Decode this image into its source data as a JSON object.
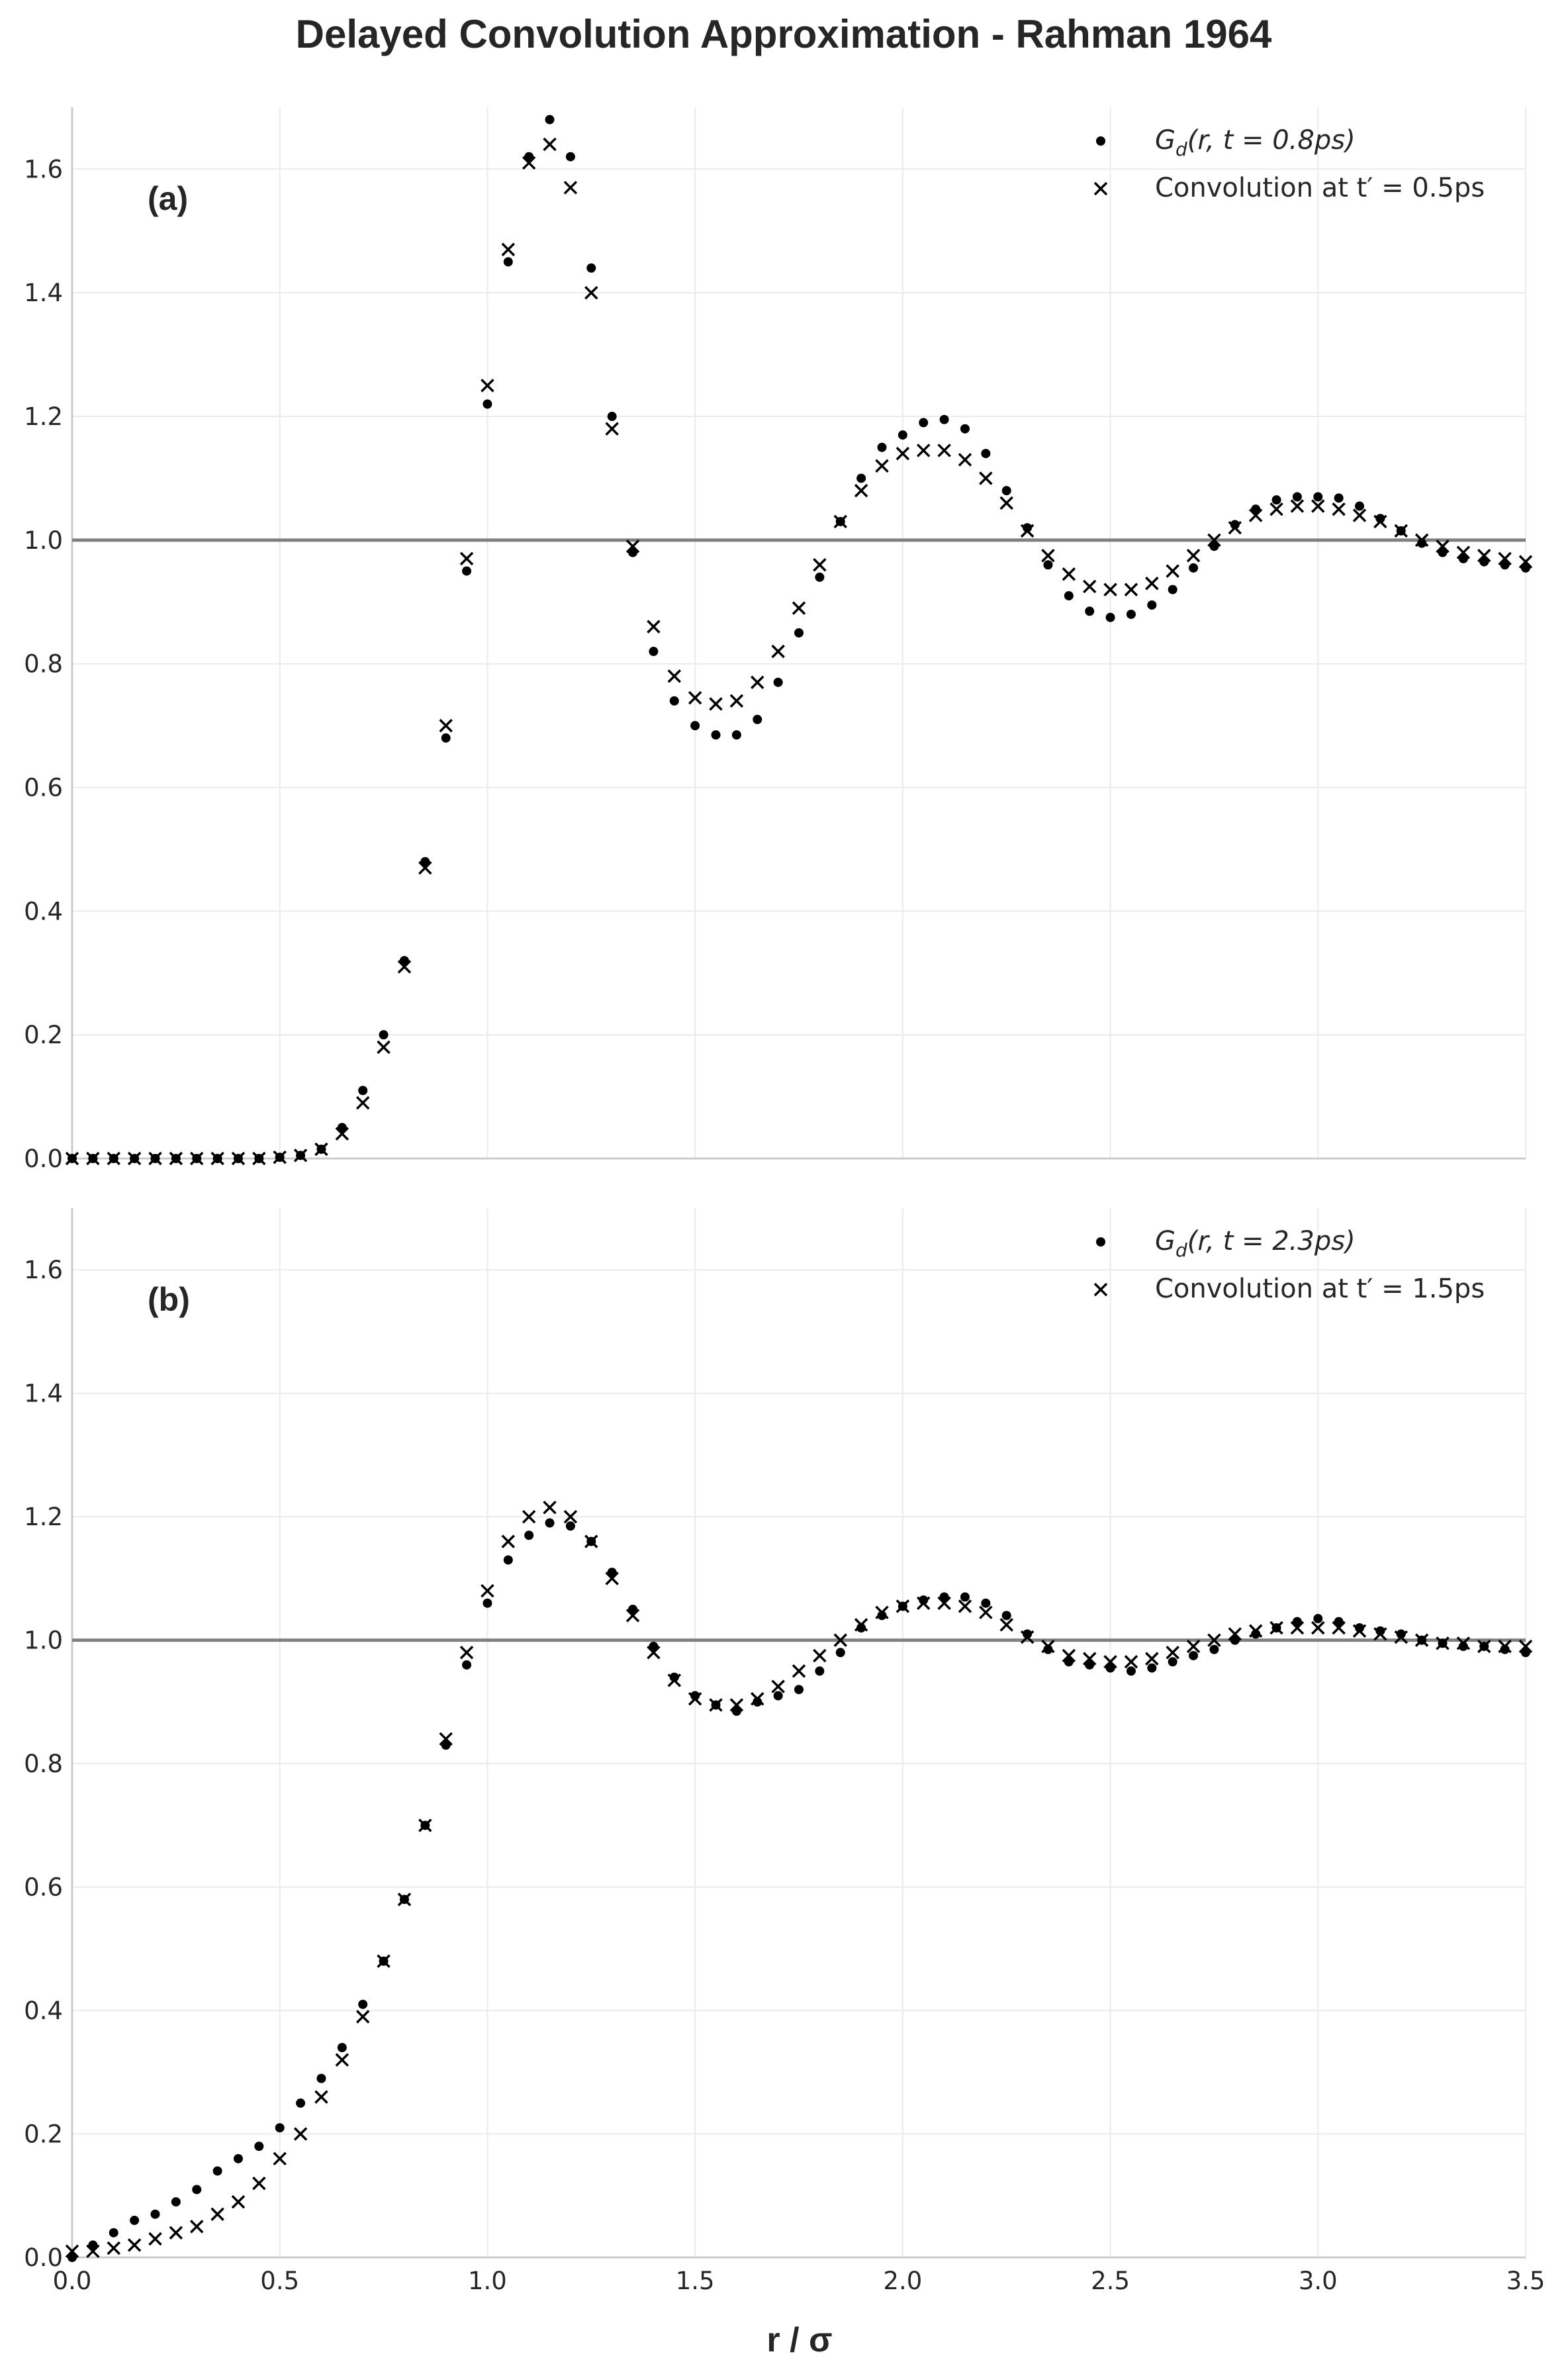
{
  "chart_data": {
    "title": "Delayed Convolution Approximation - Rahman 1964",
    "xlabel": "r / σ",
    "x_ticks": [
      "0.0",
      "0.5",
      "1.0",
      "1.5",
      "2.0",
      "2.5",
      "3.0",
      "3.5"
    ],
    "y_ticks": [
      "0.0",
      "0.2",
      "0.4",
      "0.6",
      "0.8",
      "1.0",
      "1.2",
      "1.4",
      "1.6"
    ],
    "xlim": [
      0,
      3.5
    ],
    "ylim": [
      0,
      1.7
    ],
    "grid": true,
    "reference_line_y": 1.0,
    "colors": {
      "markers": "#000000",
      "reference_line": "#808080",
      "grid": "#ebebeb",
      "spine": "#cccccc"
    },
    "x": [
      0,
      0.05,
      0.1,
      0.15,
      0.2,
      0.25,
      0.3,
      0.35,
      0.4,
      0.45,
      0.5,
      0.55,
      0.6,
      0.65,
      0.7,
      0.75,
      0.8,
      0.85,
      0.9,
      0.95,
      1.0,
      1.05,
      1.1,
      1.15,
      1.2,
      1.25,
      1.3,
      1.35,
      1.4,
      1.45,
      1.5,
      1.55,
      1.6,
      1.65,
      1.7,
      1.75,
      1.8,
      1.85,
      1.9,
      1.95,
      2.0,
      2.05,
      2.1,
      2.15,
      2.2,
      2.25,
      2.3,
      2.35,
      2.4,
      2.45,
      2.5,
      2.55,
      2.6,
      2.65,
      2.7,
      2.75,
      2.8,
      2.85,
      2.9,
      2.95,
      3.0,
      3.05,
      3.1,
      3.15,
      3.2,
      3.25,
      3.3,
      3.35,
      3.4,
      3.45,
      3.5
    ],
    "panels": [
      {
        "label": "(a)",
        "type": "scatter",
        "legend_position": "top-right",
        "series": [
          {
            "name": "G_d(r, t = 0.8ps)",
            "legend_main": "G",
            "legend_sub": "d",
            "legend_rest": "(r, t = 0.8ps)",
            "marker": "dot",
            "values": [
              0,
              0,
              0,
              0,
              0,
              0,
              0,
              0,
              0,
              0,
              0.002,
              0.005,
              0.015,
              0.05,
              0.11,
              0.2,
              0.32,
              0.48,
              0.68,
              0.95,
              1.22,
              1.45,
              1.62,
              1.68,
              1.62,
              1.44,
              1.2,
              0.98,
              0.82,
              0.74,
              0.7,
              0.685,
              0.685,
              0.71,
              0.77,
              0.85,
              0.94,
              1.03,
              1.1,
              1.15,
              1.17,
              1.19,
              1.195,
              1.18,
              1.14,
              1.08,
              1.02,
              0.96,
              0.91,
              0.885,
              0.875,
              0.88,
              0.895,
              0.92,
              0.955,
              0.99,
              1.025,
              1.05,
              1.065,
              1.07,
              1.07,
              1.068,
              1.055,
              1.035,
              1.015,
              0.995,
              0.98,
              0.97,
              0.965,
              0.96,
              0.955
            ]
          },
          {
            "name": "Convolution at t′ = 0.5ps",
            "legend_main": "Convolution at t′ = 0.5ps",
            "marker": "x",
            "values": [
              0,
              0,
              0,
              0,
              0,
              0,
              0,
              0,
              0,
              0,
              0.002,
              0.005,
              0.015,
              0.04,
              0.09,
              0.18,
              0.31,
              0.47,
              0.7,
              0.97,
              1.25,
              1.47,
              1.61,
              1.64,
              1.57,
              1.4,
              1.18,
              0.99,
              0.86,
              0.78,
              0.745,
              0.735,
              0.74,
              0.77,
              0.82,
              0.89,
              0.96,
              1.03,
              1.08,
              1.12,
              1.14,
              1.145,
              1.145,
              1.13,
              1.1,
              1.06,
              1.015,
              0.975,
              0.945,
              0.925,
              0.92,
              0.92,
              0.93,
              0.95,
              0.975,
              1.0,
              1.02,
              1.04,
              1.05,
              1.055,
              1.055,
              1.05,
              1.04,
              1.03,
              1.015,
              1.0,
              0.99,
              0.98,
              0.975,
              0.97,
              0.965
            ]
          }
        ]
      },
      {
        "label": "(b)",
        "type": "scatter",
        "legend_position": "top-right",
        "series": [
          {
            "name": "G_d(r, t = 2.3ps)",
            "legend_main": "G",
            "legend_sub": "d",
            "legend_rest": "(r, t = 2.3ps)",
            "marker": "dot",
            "values": [
              0.0,
              0.02,
              0.04,
              0.06,
              0.07,
              0.09,
              0.11,
              0.14,
              0.16,
              0.18,
              0.21,
              0.25,
              0.29,
              0.34,
              0.41,
              0.48,
              0.58,
              0.7,
              0.83,
              0.96,
              1.06,
              1.13,
              1.17,
              1.19,
              1.185,
              1.16,
              1.11,
              1.05,
              0.99,
              0.94,
              0.91,
              0.895,
              0.885,
              0.9,
              0.91,
              0.92,
              0.95,
              0.98,
              1.02,
              1.04,
              1.055,
              1.065,
              1.07,
              1.07,
              1.06,
              1.04,
              1.01,
              0.985,
              0.965,
              0.96,
              0.955,
              0.95,
              0.955,
              0.965,
              0.975,
              0.985,
              1.0,
              1.01,
              1.02,
              1.03,
              1.035,
              1.03,
              1.02,
              1.015,
              1.01,
              1.0,
              0.995,
              0.99,
              0.99,
              0.985,
              0.98
            ]
          },
          {
            "name": "Convolution at t′ = 1.5ps",
            "legend_main": "Convolution at t′ = 1.5ps",
            "marker": "x",
            "values": [
              0.01,
              0.01,
              0.015,
              0.02,
              0.03,
              0.04,
              0.05,
              0.07,
              0.09,
              0.12,
              0.16,
              0.2,
              0.26,
              0.32,
              0.39,
              0.48,
              0.58,
              0.7,
              0.84,
              0.98,
              1.08,
              1.16,
              1.2,
              1.215,
              1.2,
              1.16,
              1.1,
              1.04,
              0.98,
              0.935,
              0.905,
              0.895,
              0.895,
              0.905,
              0.925,
              0.95,
              0.975,
              1.0,
              1.025,
              1.045,
              1.055,
              1.06,
              1.06,
              1.055,
              1.045,
              1.025,
              1.005,
              0.99,
              0.975,
              0.97,
              0.965,
              0.965,
              0.97,
              0.98,
              0.99,
              1.0,
              1.01,
              1.015,
              1.02,
              1.02,
              1.02,
              1.02,
              1.015,
              1.01,
              1.005,
              1.0,
              0.995,
              0.995,
              0.99,
              0.99,
              0.99
            ]
          }
        ]
      }
    ]
  }
}
